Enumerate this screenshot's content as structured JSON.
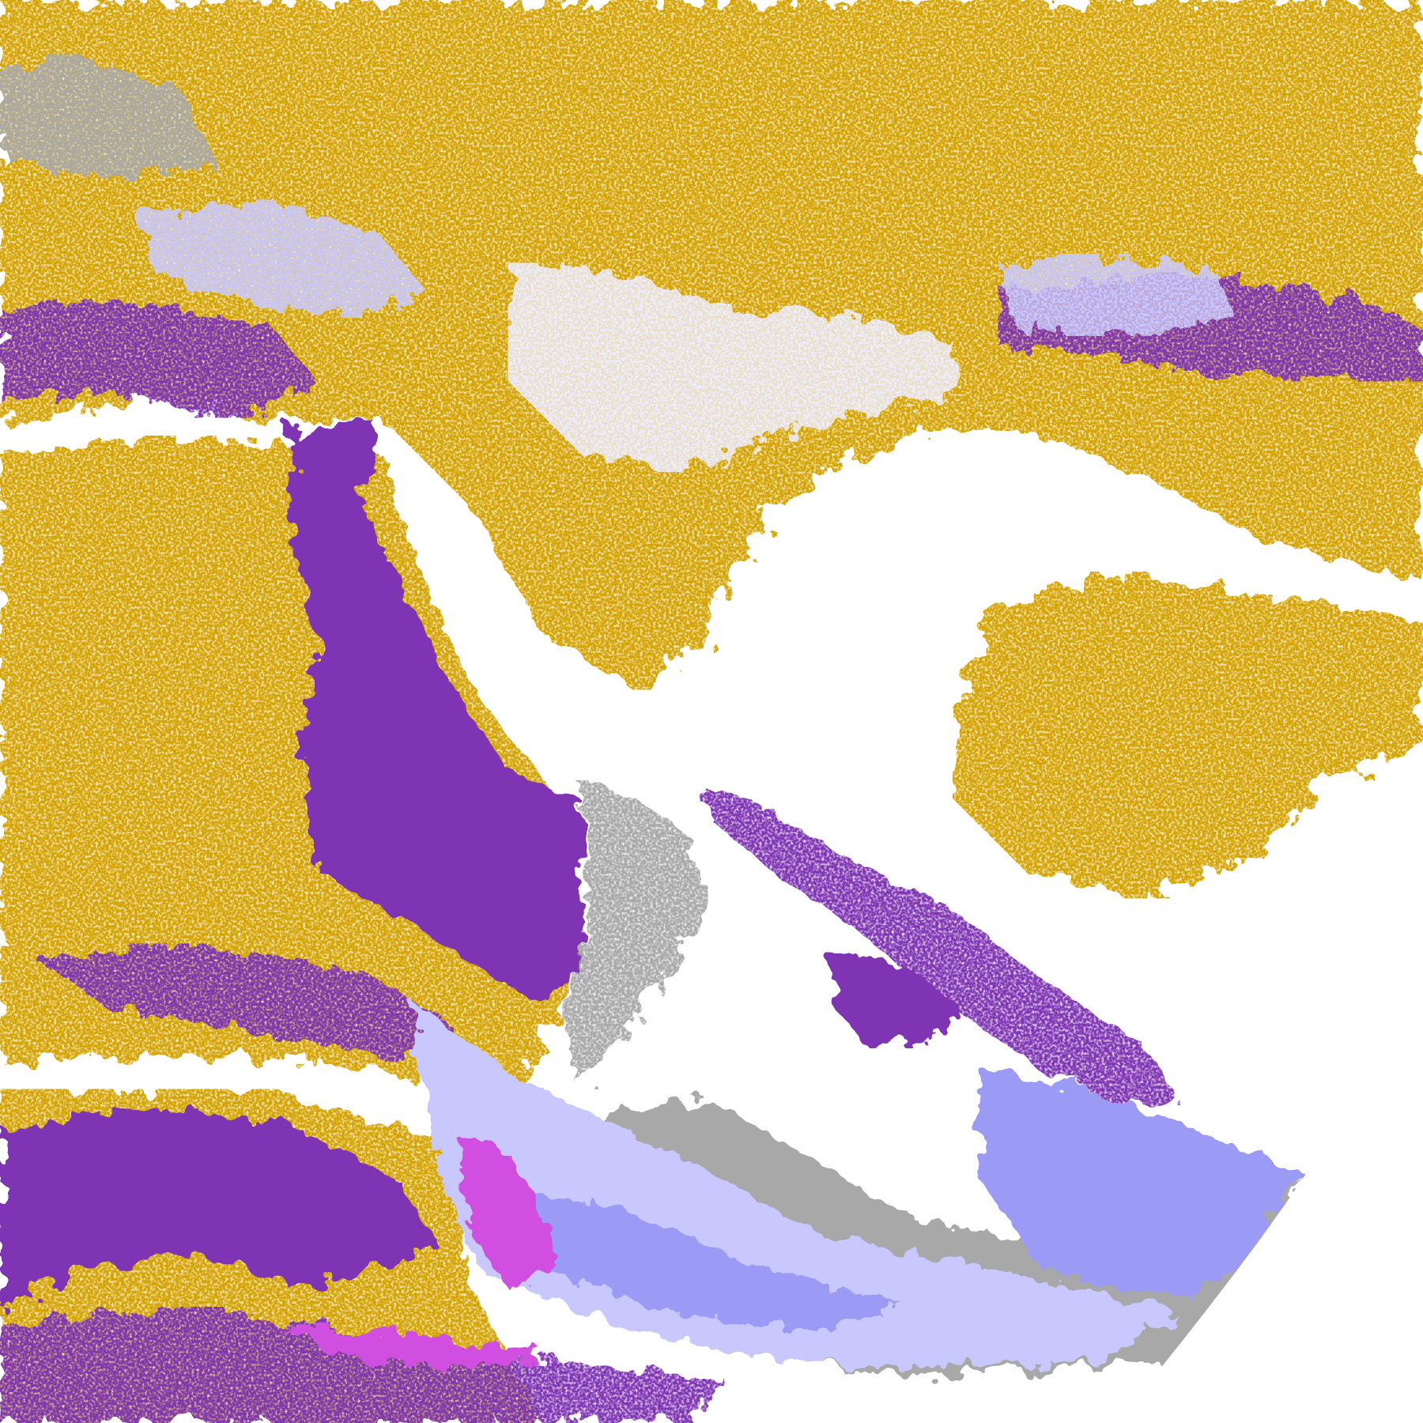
{
  "map": {
    "kind": "satellite cloud-type classification",
    "colors": {
      "background": "#ffffff",
      "gold": "#d4a300",
      "dark_gold": "#b8900a",
      "purple": "#7f35b3",
      "magenta": "#d050e0",
      "lavender": "#c8c8ff",
      "periwinkle": "#9b9bf5",
      "pale": "#ededff",
      "gray": "#a8a8a8"
    }
  }
}
